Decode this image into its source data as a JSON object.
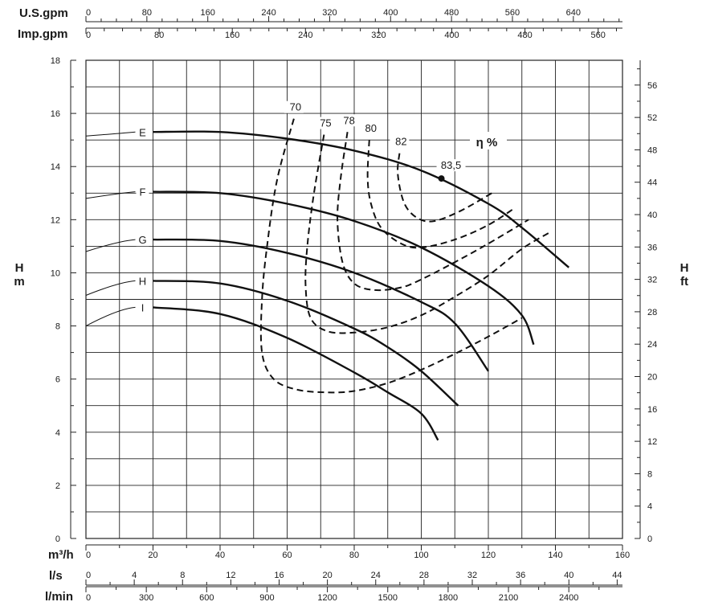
{
  "chart_data": {
    "type": "line",
    "top_scales": {
      "usgpm": {
        "label": "U.S.gpm",
        "ticks": [
          "0",
          "80",
          "160",
          "240",
          "320",
          "400",
          "480",
          "560",
          "640"
        ],
        "max": 704.5
      },
      "impgpm": {
        "label": "Imp.gpm",
        "ticks": [
          "0",
          "80",
          "160",
          "240",
          "320",
          "400",
          "480",
          "560"
        ],
        "max": 586.6
      }
    },
    "bottom_scales": {
      "m3h": {
        "label": "m³/h",
        "ticks": [
          "0",
          "20",
          "40",
          "60",
          "80",
          "100",
          "120",
          "140",
          "160"
        ],
        "max": 160
      },
      "ls": {
        "label": "l/s",
        "ticks": [
          "0",
          "4",
          "8",
          "12",
          "16",
          "20",
          "24",
          "28",
          "32",
          "36",
          "40",
          "44"
        ],
        "max": 44.44
      },
      "lmin": {
        "label": "l/min",
        "ticks": [
          "0",
          "300",
          "600",
          "900",
          "1200",
          "1500",
          "1800",
          "2100",
          "2400"
        ],
        "max": 2666.7
      }
    },
    "left_axis": {
      "label1": "H",
      "label2": "m",
      "ticks": [
        "0",
        "2",
        "4",
        "6",
        "8",
        "10",
        "12",
        "14",
        "16",
        "18"
      ],
      "ylim": [
        0,
        18
      ]
    },
    "right_axis": {
      "label1": "H",
      "label2": "ft",
      "ticks": [
        "0",
        "4",
        "8",
        "12",
        "16",
        "20",
        "24",
        "28",
        "32",
        "36",
        "40",
        "44",
        "48",
        "52",
        "56"
      ],
      "ylim": [
        0,
        59.06
      ]
    },
    "xlim": [
      0,
      160
    ],
    "grid": true,
    "eff_title": "η %",
    "series": [
      {
        "name": "E",
        "points": [
          [
            20,
            15.3
          ],
          [
            40,
            15.3
          ],
          [
            60,
            15.05
          ],
          [
            80,
            14.6
          ],
          [
            100,
            13.85
          ],
          [
            120,
            12.6
          ],
          [
            130,
            11.7
          ],
          [
            144,
            10.2
          ]
        ]
      },
      {
        "name": "F",
        "points": [
          [
            20,
            13.05
          ],
          [
            40,
            13.0
          ],
          [
            60,
            12.6
          ],
          [
            80,
            11.95
          ],
          [
            100,
            10.95
          ],
          [
            120,
            9.5
          ],
          [
            130,
            8.4
          ],
          [
            133.5,
            7.3
          ]
        ]
      },
      {
        "name": "G",
        "points": [
          [
            20,
            11.25
          ],
          [
            40,
            11.2
          ],
          [
            60,
            10.75
          ],
          [
            80,
            10.0
          ],
          [
            100,
            8.9
          ],
          [
            110,
            8.1
          ],
          [
            120,
            6.3
          ]
        ]
      },
      {
        "name": "H",
        "points": [
          [
            20,
            9.7
          ],
          [
            40,
            9.6
          ],
          [
            60,
            8.95
          ],
          [
            80,
            7.9
          ],
          [
            90,
            7.2
          ],
          [
            100,
            6.3
          ],
          [
            111,
            5.0
          ]
        ]
      },
      {
        "name": "I",
        "points": [
          [
            20,
            8.7
          ],
          [
            40,
            8.45
          ],
          [
            60,
            7.55
          ],
          [
            80,
            6.25
          ],
          [
            90,
            5.5
          ],
          [
            100,
            4.7
          ],
          [
            105,
            3.7
          ]
        ]
      }
    ],
    "efficiency_contours": [
      {
        "label": "70",
        "points": [
          [
            62,
            15.8
          ],
          [
            57,
            13.5
          ],
          [
            54,
            11.0
          ],
          [
            52.5,
            9.0
          ],
          [
            52.5,
            7.0
          ],
          [
            56,
            6.0
          ],
          [
            63,
            5.6
          ],
          [
            72,
            5.5
          ],
          [
            80,
            5.55
          ],
          [
            90,
            5.85
          ],
          [
            100,
            6.35
          ],
          [
            110,
            6.95
          ],
          [
            120,
            7.6
          ],
          [
            130,
            8.3
          ]
        ]
      },
      {
        "label": "75",
        "points": [
          [
            71,
            15.2
          ],
          [
            68,
            13.0
          ],
          [
            66,
            11.0
          ],
          [
            65.5,
            9.5
          ],
          [
            67,
            8.3
          ],
          [
            72,
            7.8
          ],
          [
            80,
            7.75
          ],
          [
            90,
            7.95
          ],
          [
            100,
            8.4
          ],
          [
            110,
            9.1
          ],
          [
            120,
            9.9
          ],
          [
            130,
            10.9
          ],
          [
            138,
            11.5
          ]
        ]
      },
      {
        "label": "78",
        "points": [
          [
            78,
            15.3
          ],
          [
            76,
            13.6
          ],
          [
            75,
            12.0
          ],
          [
            76.5,
            10.4
          ],
          [
            80,
            9.6
          ],
          [
            86,
            9.35
          ],
          [
            94,
            9.45
          ],
          [
            100,
            9.75
          ],
          [
            110,
            10.4
          ],
          [
            120,
            11.1
          ],
          [
            132,
            12.0
          ]
        ]
      },
      {
        "label": "80",
        "points": [
          [
            84.5,
            15.0
          ],
          [
            84,
            13.6
          ],
          [
            85,
            12.6
          ],
          [
            88,
            11.7
          ],
          [
            94,
            11.1
          ],
          [
            100,
            10.95
          ],
          [
            110,
            11.25
          ],
          [
            120,
            11.8
          ],
          [
            128,
            12.45
          ]
        ]
      },
      {
        "label": "82",
        "points": [
          [
            93.5,
            14.5
          ],
          [
            93,
            13.7
          ],
          [
            95,
            12.6
          ],
          [
            99,
            12.05
          ],
          [
            104,
            11.95
          ],
          [
            112,
            12.35
          ],
          [
            121,
            13.0
          ]
        ]
      }
    ],
    "bep": {
      "label": "83,5",
      "x": 106,
      "y": 13.55
    }
  }
}
